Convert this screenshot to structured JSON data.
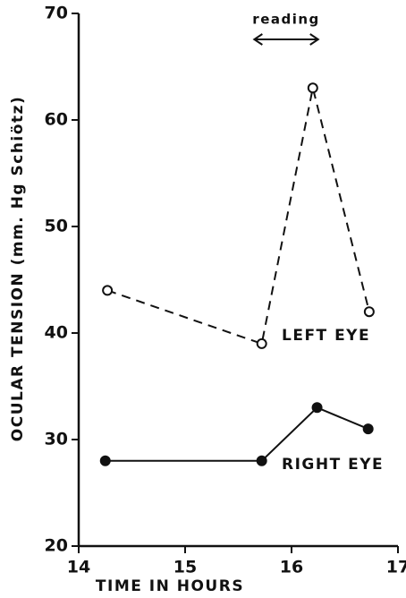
{
  "chart_data": {
    "type": "line",
    "x_label": "TIME IN HOURS",
    "y_label": "OCULAR TENSION (mm. Hg Schiötz)",
    "xlim": [
      14,
      17
    ],
    "xticks": [
      14,
      15,
      16,
      17
    ],
    "ylim": [
      20,
      70
    ],
    "yticks": [
      20,
      30,
      40,
      50,
      60,
      70
    ],
    "annotation": {
      "text": "reading",
      "x_start": 15.65,
      "x_end": 16.25
    },
    "series": [
      {
        "name": "LEFT EYE",
        "color": "#111111",
        "dashed": true,
        "marker": "open",
        "x": [
          14.27,
          15.72,
          16.2,
          16.73
        ],
        "values": [
          44,
          39,
          63,
          42
        ]
      },
      {
        "name": "RIGHT EYE",
        "color": "#111111",
        "dashed": false,
        "marker": "filled",
        "x": [
          14.25,
          15.72,
          16.24,
          16.72
        ],
        "values": [
          28,
          28,
          33,
          31
        ]
      }
    ]
  }
}
